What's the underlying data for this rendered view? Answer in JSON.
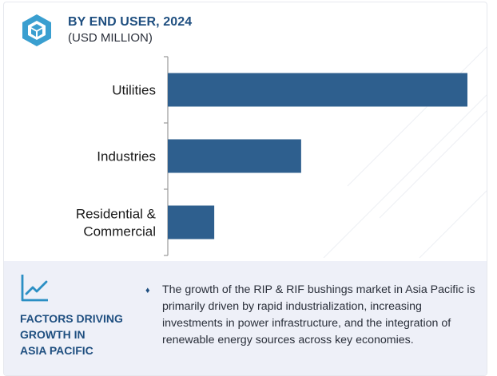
{
  "header": {
    "icon": "cube-logo-icon",
    "title": "BY END USER, 2024",
    "subtitle": "(USD MILLION)"
  },
  "colors": {
    "bar": "#2e5f8e",
    "title": "#1f4f80",
    "footer_bg": "#eef0f8"
  },
  "chart_data": {
    "type": "bar",
    "orientation": "horizontal",
    "title": "BY END USER, 2024",
    "unit": "(USD MILLION)",
    "categories": [
      "Utilities",
      "Industries",
      "Residential & Commercial"
    ],
    "category_lines": [
      [
        "Utilities"
      ],
      [
        "Industries"
      ],
      [
        "Residential &",
        "Commercial"
      ]
    ],
    "values": [
      100,
      44.5,
      15.5
    ],
    "value_scale": "relative (no axis values printed)",
    "xlim": [
      0,
      100
    ],
    "grid": false,
    "legend": "none"
  },
  "footer": {
    "icon": "trend-chart-icon",
    "heading": "FACTORS DRIVING\nGROWTH IN\nASIA PACIFIC",
    "bullet": "♦",
    "text": "The growth of the RIP & RIF bushings market in Asia Pacific is primarily driven by rapid industrialization, increasing investments in power infrastructure, and the integration of renewable energy sources across key economies."
  }
}
